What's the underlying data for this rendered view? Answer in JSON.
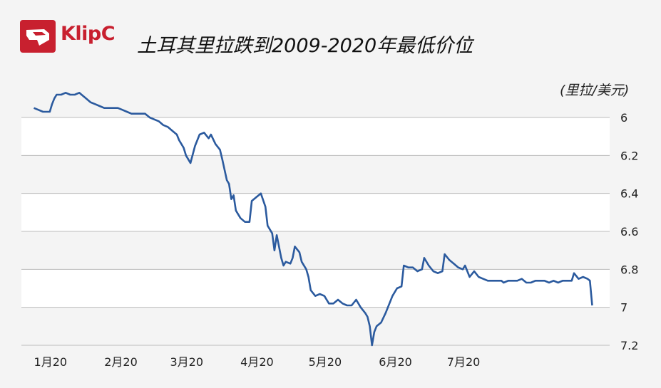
{
  "header": {
    "logo_label": "KlipC",
    "logo_icon": "klipc-logo-icon",
    "title": "土耳其里拉跌到2009-2020年最低价位"
  },
  "colors": {
    "brand": "#c8202f",
    "line": "#2b5a9e",
    "band": "#ffffff",
    "background": "#f4f4f4",
    "grid": "#bbbbbb"
  },
  "chart_data": {
    "type": "line",
    "title": "土耳其里拉跌到2009-2020年最低价位",
    "unit_label": "(里拉/美元)",
    "y_axis": {
      "position": "right",
      "inverted": true,
      "ylim": [
        5.9,
        7.2
      ],
      "ticks": [
        6,
        6.2,
        6.4,
        6.6,
        6.8,
        7,
        7.2
      ]
    },
    "x_ticks": [
      {
        "label": "1月20",
        "x": 1
      },
      {
        "label": "2月20",
        "x": 32
      },
      {
        "label": "3月20",
        "x": 61
      },
      {
        "label": "4月20",
        "x": 92
      },
      {
        "label": "5月20",
        "x": 122
      },
      {
        "label": "6月20",
        "x": 153
      },
      {
        "label": "7月20",
        "x": 183
      }
    ],
    "xlim": [
      -2,
      212
    ],
    "grid": true,
    "series": [
      {
        "points": [
          [
            1,
            5.95
          ],
          [
            3,
            5.96
          ],
          [
            5,
            5.97
          ],
          [
            7,
            5.97
          ],
          [
            8,
            5.97
          ],
          [
            9,
            5.93
          ],
          [
            10,
            5.9
          ],
          [
            11,
            5.88
          ],
          [
            13,
            5.88
          ],
          [
            15,
            5.87
          ],
          [
            17,
            5.88
          ],
          [
            19,
            5.88
          ],
          [
            21,
            5.87
          ],
          [
            22,
            5.88
          ],
          [
            24,
            5.9
          ],
          [
            26,
            5.92
          ],
          [
            28,
            5.93
          ],
          [
            30,
            5.94
          ],
          [
            32,
            5.95
          ],
          [
            34,
            5.95
          ],
          [
            36,
            5.95
          ],
          [
            38,
            5.95
          ],
          [
            40,
            5.96
          ],
          [
            42,
            5.97
          ],
          [
            44,
            5.98
          ],
          [
            46,
            5.98
          ],
          [
            48,
            5.98
          ],
          [
            50,
            5.98
          ],
          [
            52,
            6
          ],
          [
            54,
            6.01
          ],
          [
            56,
            6.02
          ],
          [
            58,
            6.04
          ],
          [
            60,
            6.05
          ],
          [
            62,
            6.07
          ],
          [
            64,
            6.09
          ],
          [
            65,
            6.12
          ],
          [
            66,
            6.14
          ],
          [
            67,
            6.16
          ],
          [
            68,
            6.2
          ],
          [
            69,
            6.22
          ],
          [
            70,
            6.24
          ],
          [
            72,
            6.15
          ],
          [
            74,
            6.09
          ],
          [
            76,
            6.08
          ],
          [
            78,
            6.11
          ],
          [
            79,
            6.09
          ],
          [
            81,
            6.14
          ],
          [
            83,
            6.17
          ],
          [
            84,
            6.22
          ],
          [
            86,
            6.33
          ],
          [
            87,
            6.35
          ],
          [
            88,
            6.43
          ],
          [
            89,
            6.41
          ],
          [
            90,
            6.49
          ],
          [
            92,
            6.53
          ],
          [
            94,
            6.55
          ],
          [
            96,
            6.55
          ],
          [
            97,
            6.44
          ],
          [
            99,
            6.42
          ],
          [
            101,
            6.4
          ],
          [
            103,
            6.47
          ],
          [
            104,
            6.57
          ],
          [
            106,
            6.61
          ],
          [
            107,
            6.7
          ],
          [
            108,
            6.62
          ],
          [
            110,
            6.74
          ],
          [
            111,
            6.78
          ],
          [
            112,
            6.76
          ],
          [
            114,
            6.77
          ],
          [
            115,
            6.74
          ],
          [
            116,
            6.68
          ],
          [
            118,
            6.71
          ],
          [
            119,
            6.76
          ],
          [
            121,
            6.8
          ],
          [
            122,
            6.84
          ],
          [
            123,
            6.91
          ],
          [
            125,
            6.94
          ],
          [
            127,
            6.93
          ],
          [
            129,
            6.94
          ],
          [
            131,
            6.98
          ],
          [
            133,
            6.98
          ],
          [
            135,
            6.96
          ],
          [
            137,
            6.98
          ],
          [
            139,
            6.99
          ],
          [
            141,
            6.99
          ],
          [
            143,
            6.96
          ],
          [
            145,
            7
          ],
          [
            147,
            7.03
          ],
          [
            148,
            7.05
          ],
          [
            149,
            7.1
          ],
          [
            150,
            7.2
          ],
          [
            151,
            7.13
          ],
          [
            152,
            7.1
          ],
          [
            154,
            7.08
          ],
          [
            156,
            7.03
          ],
          [
            157,
            7
          ],
          [
            159,
            6.94
          ],
          [
            161,
            6.9
          ],
          [
            163,
            6.89
          ],
          [
            164,
            6.78
          ],
          [
            166,
            6.79
          ],
          [
            168,
            6.79
          ],
          [
            170,
            6.81
          ],
          [
            172,
            6.8
          ],
          [
            173,
            6.74
          ],
          [
            175,
            6.78
          ],
          [
            177,
            6.81
          ],
          [
            179,
            6.82
          ],
          [
            181,
            6.81
          ],
          [
            182,
            6.72
          ],
          [
            184,
            6.75
          ],
          [
            186,
            6.77
          ],
          [
            188,
            6.79
          ],
          [
            190,
            6.8
          ],
          [
            191,
            6.78
          ],
          [
            193,
            6.84
          ],
          [
            195,
            6.81
          ],
          [
            197,
            6.84
          ],
          [
            199,
            6.85
          ],
          [
            201,
            6.86
          ],
          [
            203,
            6.86
          ],
          [
            205,
            6.86
          ],
          [
            207,
            6.86
          ],
          [
            208,
            6.87
          ],
          [
            210,
            6.86
          ]
        ],
        "points_extra": [
          [
            212,
            6.86
          ],
          [
            214,
            6.86
          ],
          [
            216,
            6.85
          ],
          [
            218,
            6.87
          ],
          [
            220,
            6.87
          ],
          [
            222,
            6.86
          ],
          [
            224,
            6.86
          ],
          [
            226,
            6.86
          ],
          [
            228,
            6.87
          ],
          [
            230,
            6.86
          ],
          [
            232,
            6.87
          ],
          [
            234,
            6.86
          ],
          [
            236,
            6.86
          ],
          [
            238,
            6.86
          ],
          [
            239,
            6.82
          ],
          [
            241,
            6.85
          ],
          [
            243,
            6.84
          ],
          [
            245,
            6.85
          ],
          [
            246,
            6.86
          ],
          [
            247,
            6.99
          ]
        ]
      }
    ]
  }
}
